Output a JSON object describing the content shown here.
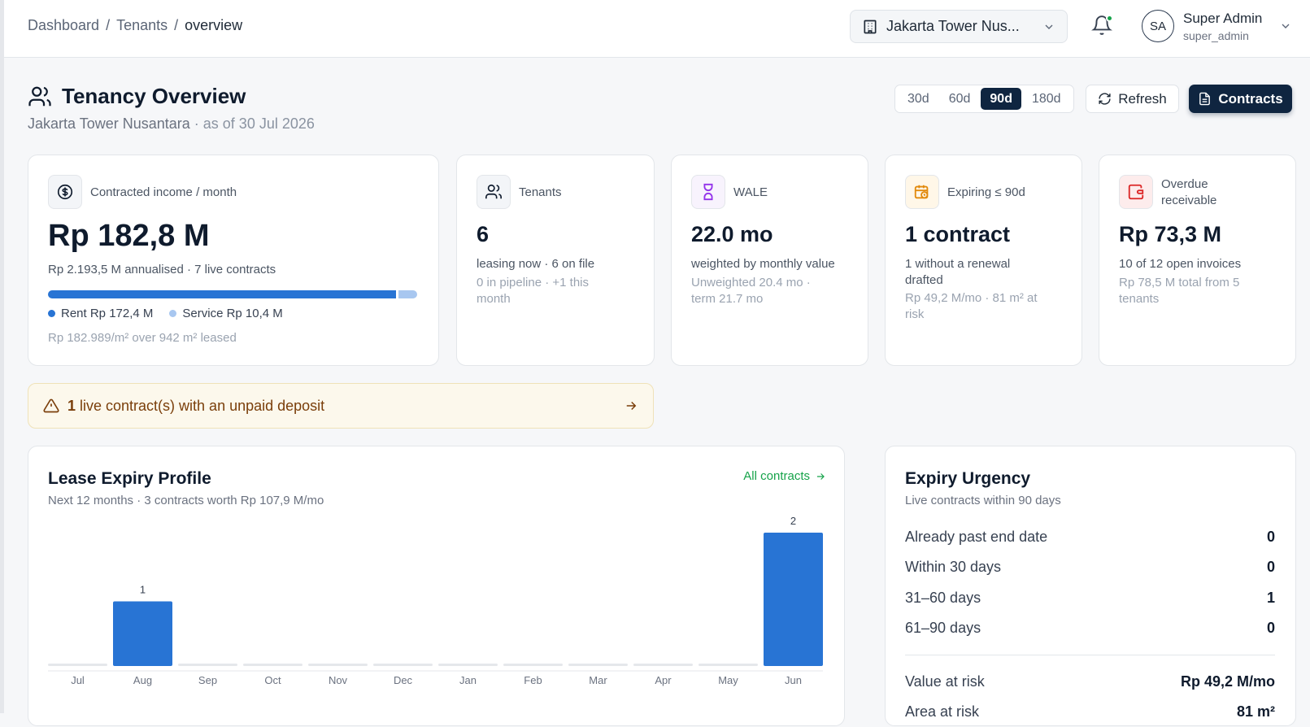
{
  "breadcrumb": {
    "items": [
      "Dashboard",
      "Tenants",
      "overview"
    ]
  },
  "property_selector": {
    "value": "Jakarta Tower Nus..."
  },
  "user": {
    "initials": "SA",
    "name": "Super Admin",
    "role": "super_admin"
  },
  "header": {
    "title": "Tenancy Overview",
    "property": "Jakarta Tower Nusantara",
    "as_of": " · as of 30 Jul 2026"
  },
  "range": {
    "options": [
      "30d",
      "60d",
      "90d",
      "180d"
    ],
    "selected": "90d"
  },
  "buttons": {
    "refresh": "Refresh",
    "contracts": "Contracts"
  },
  "kpis": {
    "income": {
      "label": "Contracted income / month",
      "value": "Rp 182,8 M",
      "sub": "Rp 2.193,5 M annualised · 7 live contracts",
      "rent_label": "Rent Rp 172,4 M",
      "service_label": "Service Rp 10,4 M",
      "rent_share": 0.943,
      "footer": "Rp 182.989/m² over 942 m² leased"
    },
    "tenants": {
      "label": "Tenants",
      "value": "6",
      "sub": "leasing now · 6 on file",
      "muted": "0 in pipeline · +1 this month"
    },
    "wale": {
      "label": "WALE",
      "value": "22.0 mo",
      "sub": "weighted by monthly value",
      "muted": "Unweighted 20.4 mo · term 21.7 mo"
    },
    "expiring": {
      "label": "Expiring ≤ 90d",
      "value": "1 contract",
      "sub": "1 without a renewal drafted",
      "muted": "Rp 49,2 M/mo · 81 m² at risk"
    },
    "overdue": {
      "label": "Overdue receivable",
      "value": "Rp 73,3 M",
      "sub": "10 of 12 open invoices",
      "muted": "Rp 78,5 M total from 5 tenants"
    }
  },
  "alert": {
    "count": "1",
    "text": " live contract(s) with an unpaid deposit"
  },
  "lease_expiry": {
    "title": "Lease Expiry Profile",
    "subtitle": "Next 12 months · 3 contracts worth Rp 107,9 M/mo",
    "link": "All contracts"
  },
  "chart_data": {
    "type": "bar",
    "categories": [
      "Jul",
      "Aug",
      "Sep",
      "Oct",
      "Nov",
      "Dec",
      "Jan",
      "Feb",
      "Mar",
      "Apr",
      "May",
      "Jun"
    ],
    "values": [
      0,
      1,
      0,
      0,
      0,
      0,
      0,
      0,
      0,
      0,
      0,
      2
    ],
    "value_by": "monthly value",
    "bar_color": "#2874d4",
    "empty_color": "#e5e7eb"
  },
  "urgency": {
    "title": "Expiry Urgency",
    "subtitle": "Live contracts within 90 days",
    "rows": [
      {
        "label": "Already past end date",
        "value": "0"
      },
      {
        "label": "Within 30 days",
        "value": "0"
      },
      {
        "label": "31–60 days",
        "value": "1"
      },
      {
        "label": "61–90 days",
        "value": "0"
      }
    ],
    "value_at_risk": {
      "label": "Value at risk",
      "value": "Rp 49,2 M/mo"
    },
    "area_at_risk": {
      "label": "Area at risk",
      "value": "81 m²"
    }
  },
  "colors": {
    "navy": "#0f2540",
    "accent_blue": "#2874d4",
    "green": "#16a34a"
  }
}
